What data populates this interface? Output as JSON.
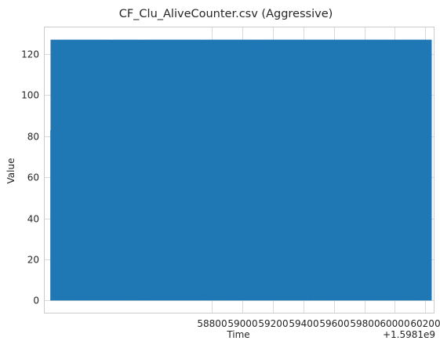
{
  "chart_data": {
    "type": "line",
    "title": "CF_Clu_AliveCounter.csv (Aggressive)",
    "xlabel": "Time",
    "ylabel": "Value",
    "x_offset_label": "+1.5981e9",
    "xlim": [
      57700,
      60260
    ],
    "ylim": [
      -6.4,
      133.4
    ],
    "x_range": [
      57745,
      60240
    ],
    "value_range": [
      0,
      127
    ],
    "xticks": [
      {
        "value": 58800,
        "label": "58800"
      },
      {
        "value": 59000,
        "label": "59000"
      },
      {
        "value": 59200,
        "label": "59200"
      },
      {
        "value": 59400,
        "label": "59400"
      },
      {
        "value": 59600,
        "label": "59600"
      },
      {
        "value": 59800,
        "label": "59800"
      },
      {
        "value": 60000,
        "label": "60000"
      },
      {
        "value": 60200,
        "label": "60200"
      }
    ],
    "yticks": [
      {
        "value": 0,
        "label": "0"
      },
      {
        "value": 20,
        "label": "20"
      },
      {
        "value": 40,
        "label": "40"
      },
      {
        "value": 60,
        "label": "60"
      },
      {
        "value": 80,
        "label": "80"
      },
      {
        "value": 100,
        "label": "100"
      },
      {
        "value": 120,
        "label": "120"
      }
    ],
    "series": [
      {
        "name": "CF_Clu_AliveCounter",
        "color": "#1f77b4",
        "pattern": "counter cycling 0-127 at high frequency"
      }
    ],
    "grid": true
  }
}
